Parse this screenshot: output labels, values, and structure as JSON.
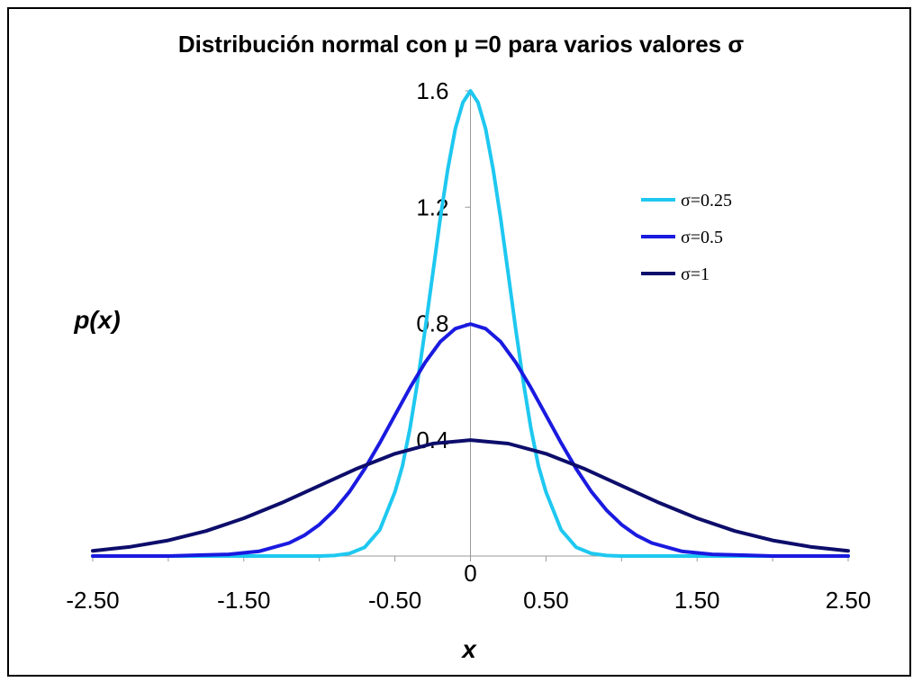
{
  "chart_data": {
    "type": "line",
    "title": "Distribución normal con μ =0 para varios valores σ",
    "xlabel": "x",
    "ylabel": "p(x)",
    "xlim": [
      -2.5,
      2.5
    ],
    "ylim": [
      0,
      1.6
    ],
    "x_ticks": [
      "-2.50",
      "-1.50",
      "-0.50",
      "0.50",
      "1.50",
      "2.50"
    ],
    "x_tick_values": [
      -2.5,
      -1.5,
      -0.5,
      0.5,
      1.5,
      2.5
    ],
    "x_zero_label": "0",
    "y_ticks": [
      "0.4",
      "0.8",
      "1.2",
      "1.6"
    ],
    "y_tick_values": [
      0.4,
      0.8,
      1.2,
      1.6
    ],
    "grid": false,
    "legend_position": "right",
    "series": [
      {
        "name": "σ=0.25",
        "color": "#1EC8F0",
        "x": [
          -2.5,
          -2.0,
          -1.5,
          -1.2,
          -1.0,
          -0.9,
          -0.8,
          -0.7,
          -0.6,
          -0.5,
          -0.45,
          -0.4,
          -0.35,
          -0.3,
          -0.25,
          -0.2,
          -0.15,
          -0.1,
          -0.05,
          0.0,
          0.05,
          0.1,
          0.15,
          0.2,
          0.25,
          0.3,
          0.35,
          0.4,
          0.45,
          0.5,
          0.6,
          0.7,
          0.8,
          0.9,
          1.0,
          1.2,
          1.5,
          2.0,
          2.5
        ],
        "y": [
          0.0,
          0.0,
          0.0,
          0.0,
          0.0,
          0.002,
          0.009,
          0.03,
          0.09,
          0.22,
          0.31,
          0.44,
          0.6,
          0.78,
          0.97,
          1.16,
          1.33,
          1.47,
          1.56,
          1.6,
          1.56,
          1.47,
          1.33,
          1.16,
          0.97,
          0.78,
          0.6,
          0.44,
          0.31,
          0.22,
          0.09,
          0.03,
          0.009,
          0.002,
          0.0,
          0.0,
          0.0,
          0.0,
          0.0
        ]
      },
      {
        "name": "σ=0.5",
        "color": "#1A1AE0",
        "x": [
          -2.5,
          -2.0,
          -1.8,
          -1.6,
          -1.4,
          -1.2,
          -1.1,
          -1.0,
          -0.9,
          -0.8,
          -0.7,
          -0.6,
          -0.5,
          -0.4,
          -0.3,
          -0.2,
          -0.1,
          0.0,
          0.1,
          0.2,
          0.3,
          0.4,
          0.5,
          0.6,
          0.7,
          0.8,
          0.9,
          1.0,
          1.1,
          1.2,
          1.4,
          1.6,
          1.8,
          2.0,
          2.5
        ],
        "y": [
          0.0,
          0.0,
          0.003,
          0.006,
          0.016,
          0.045,
          0.071,
          0.108,
          0.158,
          0.222,
          0.3,
          0.389,
          0.484,
          0.579,
          0.666,
          0.737,
          0.782,
          0.798,
          0.782,
          0.737,
          0.666,
          0.579,
          0.484,
          0.389,
          0.3,
          0.222,
          0.158,
          0.108,
          0.071,
          0.045,
          0.016,
          0.006,
          0.003,
          0.0,
          0.0
        ]
      },
      {
        "name": "σ=1",
        "color": "#0D0D6B",
        "x": [
          -2.5,
          -2.25,
          -2.0,
          -1.75,
          -1.5,
          -1.25,
          -1.0,
          -0.75,
          -0.5,
          -0.25,
          0.0,
          0.25,
          0.5,
          0.75,
          1.0,
          1.25,
          1.5,
          1.75,
          2.0,
          2.25,
          2.5
        ],
        "y": [
          0.018,
          0.032,
          0.054,
          0.086,
          0.13,
          0.183,
          0.242,
          0.301,
          0.352,
          0.387,
          0.399,
          0.387,
          0.352,
          0.301,
          0.242,
          0.183,
          0.13,
          0.086,
          0.054,
          0.032,
          0.018
        ]
      }
    ]
  }
}
